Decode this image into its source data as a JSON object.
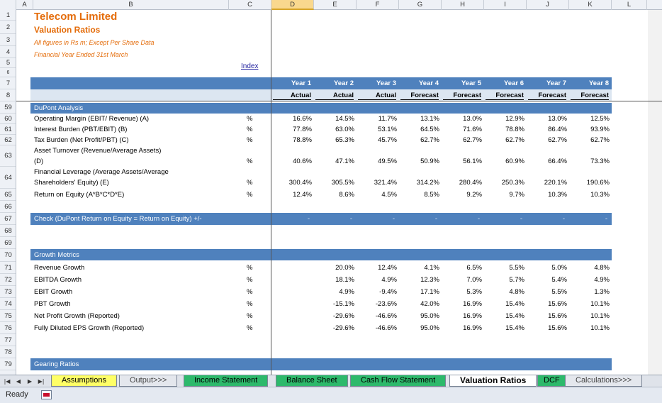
{
  "columns": [
    "A",
    "B",
    "C",
    "D",
    "E",
    "F",
    "G",
    "H",
    "I",
    "J",
    "K",
    "L"
  ],
  "selected_column": "D",
  "rows": [
    "1",
    "2",
    "3",
    "4",
    "5",
    "6",
    "7",
    "8",
    "59",
    "60",
    "61",
    "62",
    "63",
    "64",
    "65",
    "66",
    "67",
    "68",
    "69",
    "70",
    "71",
    "72",
    "73",
    "74",
    "75",
    "76",
    "77",
    "78",
    "79"
  ],
  "sheet": {
    "title": "Telecom Limited",
    "subtitle": "Valuation Ratios",
    "note1": "All figures in Rs m; Except Per Share Data",
    "note2": "Financial Year Ended 31st March",
    "index_link": "Index",
    "years": [
      "Year 1",
      "Year 2",
      "Year 3",
      "Year 4",
      "Year 5",
      "Year 6",
      "Year 7",
      "Year 8"
    ],
    "types": [
      "Actual",
      "Actual",
      "Actual",
      "Forecast",
      "Forecast",
      "Forecast",
      "Forecast",
      "Forecast"
    ],
    "dupont_header": "DuPont Analysis",
    "dupont": [
      {
        "label": "Operating Margin (EBIT/ Revenue) (A)",
        "unit": "%",
        "values": [
          "16.6%",
          "14.5%",
          "11.7%",
          "13.1%",
          "13.0%",
          "12.9%",
          "13.0%",
          "12.5%"
        ]
      },
      {
        "label": "Interest Burden (PBT/EBIT) (B)",
        "unit": "%",
        "values": [
          "77.8%",
          "63.0%",
          "53.1%",
          "64.5%",
          "71.6%",
          "78.8%",
          "86.4%",
          "93.9%"
        ]
      },
      {
        "label": "Tax Burden (Net Profit/PBT) (C)",
        "unit": "%",
        "values": [
          "78.8%",
          "65.3%",
          "45.7%",
          "62.7%",
          "62.7%",
          "62.7%",
          "62.7%",
          "62.7%"
        ]
      },
      {
        "label1": "Asset Turnover (Revenue/Average Assets)",
        "label2": "(D)",
        "unit": "%",
        "values": [
          "40.6%",
          "47.1%",
          "49.5%",
          "50.9%",
          "56.1%",
          "60.9%",
          "66.4%",
          "73.3%"
        ]
      },
      {
        "label1": "Financial Leverage (Average Assets/Average",
        "label2": "Shareholders' Equity) (E)",
        "unit": "%",
        "values": [
          "300.4%",
          "305.5%",
          "321.4%",
          "314.2%",
          "280.4%",
          "250.3%",
          "220.1%",
          "190.6%"
        ]
      },
      {
        "label": "Return on Equity (A*B*C*D*E)",
        "unit": "%",
        "values": [
          "12.4%",
          "8.6%",
          "4.5%",
          "8.5%",
          "9.2%",
          "9.7%",
          "10.3%",
          "10.3%"
        ]
      }
    ],
    "check_label": "Check (DuPont Return on Equity = Return on Equity) +/-",
    "check_values": [
      "-",
      "-",
      "-",
      "-",
      "-",
      "-",
      "-",
      "-"
    ],
    "growth_header": "Growth Metrics",
    "growth": [
      {
        "label": "Revenue Growth",
        "unit": "%",
        "values": [
          "",
          "20.0%",
          "12.4%",
          "4.1%",
          "6.5%",
          "5.5%",
          "5.0%",
          "4.8%"
        ]
      },
      {
        "label": "EBITDA Growth",
        "unit": "%",
        "values": [
          "",
          "18.1%",
          "4.9%",
          "12.3%",
          "7.0%",
          "5.7%",
          "5.4%",
          "4.9%"
        ]
      },
      {
        "label": "EBIT Growth",
        "unit": "%",
        "values": [
          "",
          "4.9%",
          "-9.4%",
          "17.1%",
          "5.3%",
          "4.8%",
          "5.5%",
          "1.3%"
        ]
      },
      {
        "label": "PBT Growth",
        "unit": "%",
        "values": [
          "",
          "-15.1%",
          "-23.6%",
          "42.0%",
          "16.9%",
          "15.4%",
          "15.6%",
          "10.1%"
        ]
      },
      {
        "label": "Net Profit Growth (Reported)",
        "unit": "%",
        "values": [
          "",
          "-29.6%",
          "-46.6%",
          "95.0%",
          "16.9%",
          "15.4%",
          "15.6%",
          "10.1%"
        ]
      },
      {
        "label": "Fully Diluted EPS Growth (Reported)",
        "unit": "%",
        "values": [
          "",
          "-29.6%",
          "-46.6%",
          "95.0%",
          "16.9%",
          "15.4%",
          "15.6%",
          "10.1%"
        ]
      }
    ],
    "gearing_header": "Gearing Ratios"
  },
  "tabs": [
    {
      "label": "Assumptions",
      "style": "yellow"
    },
    {
      "label": "Output>>>",
      "style": "plain"
    },
    {
      "label": "Income Statement",
      "style": "green"
    },
    {
      "label": "Balance Sheet",
      "style": "green"
    },
    {
      "label": "Cash Flow Statement",
      "style": "green"
    },
    {
      "label": "Valuation Ratios",
      "style": "active"
    },
    {
      "label": "DCF",
      "style": "green"
    },
    {
      "label": "Calculations>>>",
      "style": "plain"
    }
  ],
  "status": "Ready",
  "colors": {
    "band": "#4f81bd",
    "title": "#e46c0a",
    "tab_green": "#2db96b",
    "tab_yellow": "#ffff66"
  }
}
